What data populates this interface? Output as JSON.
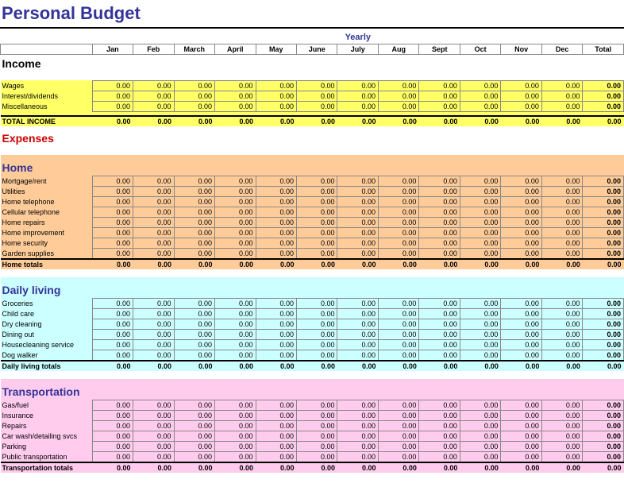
{
  "title": "Personal Budget",
  "yearly_label": "Yearly",
  "months": [
    "Jan",
    "Feb",
    "March",
    "April",
    "May",
    "June",
    "July",
    "Aug",
    "Sept",
    "Oct",
    "Nov",
    "Dec"
  ],
  "total_label": "Total",
  "colors": {
    "title": "#333399",
    "expenses": "#cc0000",
    "yellow": "#ffff66",
    "orange": "#ffcc99",
    "cyan": "#ccffff",
    "pink": "#ffccee"
  },
  "income": {
    "title": "Income",
    "rows": [
      {
        "label": "Wages",
        "values": [
          "0.00",
          "0.00",
          "0.00",
          "0.00",
          "0.00",
          "0.00",
          "0.00",
          "0.00",
          "0.00",
          "0.00",
          "0.00",
          "0.00"
        ],
        "total": "0.00"
      },
      {
        "label": "Interest/dividends",
        "values": [
          "0.00",
          "0.00",
          "0.00",
          "0.00",
          "0.00",
          "0.00",
          "0.00",
          "0.00",
          "0.00",
          "0.00",
          "0.00",
          "0.00"
        ],
        "total": "0.00"
      },
      {
        "label": "Miscellaneous",
        "values": [
          "0.00",
          "0.00",
          "0.00",
          "0.00",
          "0.00",
          "0.00",
          "0.00",
          "0.00",
          "0.00",
          "0.00",
          "0.00",
          "0.00"
        ],
        "total": "0.00"
      }
    ],
    "total_label": "TOTAL INCOME",
    "total_values": [
      "0.00",
      "0.00",
      "0.00",
      "0.00",
      "0.00",
      "0.00",
      "0.00",
      "0.00",
      "0.00",
      "0.00",
      "0.00",
      "0.00"
    ],
    "total_total": "0.00"
  },
  "expenses_title": "Expenses",
  "sections": [
    {
      "title": "Home",
      "bg": "bg-orange",
      "rows": [
        {
          "label": "Mortgage/rent",
          "values": [
            "0.00",
            "0.00",
            "0.00",
            "0.00",
            "0.00",
            "0.00",
            "0.00",
            "0.00",
            "0.00",
            "0.00",
            "0.00",
            "0.00"
          ],
          "total": "0.00"
        },
        {
          "label": "Utilities",
          "values": [
            "0.00",
            "0.00",
            "0.00",
            "0.00",
            "0.00",
            "0.00",
            "0.00",
            "0.00",
            "0.00",
            "0.00",
            "0.00",
            "0.00"
          ],
          "total": "0.00"
        },
        {
          "label": "Home telephone",
          "values": [
            "0.00",
            "0.00",
            "0.00",
            "0.00",
            "0.00",
            "0.00",
            "0.00",
            "0.00",
            "0.00",
            "0.00",
            "0.00",
            "0.00"
          ],
          "total": "0.00"
        },
        {
          "label": "Cellular telephone",
          "values": [
            "0.00",
            "0.00",
            "0.00",
            "0.00",
            "0.00",
            "0.00",
            "0.00",
            "0.00",
            "0.00",
            "0.00",
            "0.00",
            "0.00"
          ],
          "total": "0.00"
        },
        {
          "label": "Home repairs",
          "values": [
            "0.00",
            "0.00",
            "0.00",
            "0.00",
            "0.00",
            "0.00",
            "0.00",
            "0.00",
            "0.00",
            "0.00",
            "0.00",
            "0.00"
          ],
          "total": "0.00"
        },
        {
          "label": "Home improvement",
          "values": [
            "0.00",
            "0.00",
            "0.00",
            "0.00",
            "0.00",
            "0.00",
            "0.00",
            "0.00",
            "0.00",
            "0.00",
            "0.00",
            "0.00"
          ],
          "total": "0.00"
        },
        {
          "label": "Home security",
          "values": [
            "0.00",
            "0.00",
            "0.00",
            "0.00",
            "0.00",
            "0.00",
            "0.00",
            "0.00",
            "0.00",
            "0.00",
            "0.00",
            "0.00"
          ],
          "total": "0.00"
        },
        {
          "label": "Garden supplies",
          "values": [
            "0.00",
            "0.00",
            "0.00",
            "0.00",
            "0.00",
            "0.00",
            "0.00",
            "0.00",
            "0.00",
            "0.00",
            "0.00",
            "0.00"
          ],
          "total": "0.00"
        }
      ],
      "subtotal_label": "Home totals",
      "subtotal_values": [
        "0.00",
        "0.00",
        "0.00",
        "0.00",
        "0.00",
        "0.00",
        "0.00",
        "0.00",
        "0.00",
        "0.00",
        "0.00",
        "0.00"
      ],
      "subtotal_total": "0.00"
    },
    {
      "title": "Daily living",
      "bg": "bg-cyan",
      "rows": [
        {
          "label": "Groceries",
          "values": [
            "0.00",
            "0.00",
            "0.00",
            "0.00",
            "0.00",
            "0.00",
            "0.00",
            "0.00",
            "0.00",
            "0.00",
            "0.00",
            "0.00"
          ],
          "total": "0.00"
        },
        {
          "label": "Child care",
          "values": [
            "0.00",
            "0.00",
            "0.00",
            "0.00",
            "0.00",
            "0.00",
            "0.00",
            "0.00",
            "0.00",
            "0.00",
            "0.00",
            "0.00"
          ],
          "total": "0.00"
        },
        {
          "label": "Dry cleaning",
          "values": [
            "0.00",
            "0.00",
            "0.00",
            "0.00",
            "0.00",
            "0.00",
            "0.00",
            "0.00",
            "0.00",
            "0.00",
            "0.00",
            "0.00"
          ],
          "total": "0.00"
        },
        {
          "label": "Dining out",
          "values": [
            "0.00",
            "0.00",
            "0.00",
            "0.00",
            "0.00",
            "0.00",
            "0.00",
            "0.00",
            "0.00",
            "0.00",
            "0.00",
            "0.00"
          ],
          "total": "0.00"
        },
        {
          "label": "Housecleaning service",
          "values": [
            "0.00",
            "0.00",
            "0.00",
            "0.00",
            "0.00",
            "0.00",
            "0.00",
            "0.00",
            "0.00",
            "0.00",
            "0.00",
            "0.00"
          ],
          "total": "0.00"
        },
        {
          "label": "Dog walker",
          "values": [
            "0.00",
            "0.00",
            "0.00",
            "0.00",
            "0.00",
            "0.00",
            "0.00",
            "0.00",
            "0.00",
            "0.00",
            "0.00",
            "0.00"
          ],
          "total": "0.00"
        }
      ],
      "subtotal_label": "Daily living totals",
      "subtotal_values": [
        "0.00",
        "0.00",
        "0.00",
        "0.00",
        "0.00",
        "0.00",
        "0.00",
        "0.00",
        "0.00",
        "0.00",
        "0.00",
        "0.00"
      ],
      "subtotal_total": "0.00"
    },
    {
      "title": "Transportation",
      "bg": "bg-pink",
      "rows": [
        {
          "label": "Gas/fuel",
          "values": [
            "0.00",
            "0.00",
            "0.00",
            "0.00",
            "0.00",
            "0.00",
            "0.00",
            "0.00",
            "0.00",
            "0.00",
            "0.00",
            "0.00"
          ],
          "total": "0.00"
        },
        {
          "label": "Insurance",
          "values": [
            "0.00",
            "0.00",
            "0.00",
            "0.00",
            "0.00",
            "0.00",
            "0.00",
            "0.00",
            "0.00",
            "0.00",
            "0.00",
            "0.00"
          ],
          "total": "0.00"
        },
        {
          "label": "Repairs",
          "values": [
            "0.00",
            "0.00",
            "0.00",
            "0.00",
            "0.00",
            "0.00",
            "0.00",
            "0.00",
            "0.00",
            "0.00",
            "0.00",
            "0.00"
          ],
          "total": "0.00"
        },
        {
          "label": "Car wash/detailing svcs",
          "values": [
            "0.00",
            "0.00",
            "0.00",
            "0.00",
            "0.00",
            "0.00",
            "0.00",
            "0.00",
            "0.00",
            "0.00",
            "0.00",
            "0.00"
          ],
          "total": "0.00"
        },
        {
          "label": "Parking",
          "values": [
            "0.00",
            "0.00",
            "0.00",
            "0.00",
            "0.00",
            "0.00",
            "0.00",
            "0.00",
            "0.00",
            "0.00",
            "0.00",
            "0.00"
          ],
          "total": "0.00"
        },
        {
          "label": "Public transportation",
          "values": [
            "0.00",
            "0.00",
            "0.00",
            "0.00",
            "0.00",
            "0.00",
            "0.00",
            "0.00",
            "0.00",
            "0.00",
            "0.00",
            "0.00"
          ],
          "total": "0.00"
        }
      ],
      "subtotal_label": "Transportation totals",
      "subtotal_values": [
        "0.00",
        "0.00",
        "0.00",
        "0.00",
        "0.00",
        "0.00",
        "0.00",
        "0.00",
        "0.00",
        "0.00",
        "0.00",
        "0.00"
      ],
      "subtotal_total": "0.00"
    }
  ]
}
